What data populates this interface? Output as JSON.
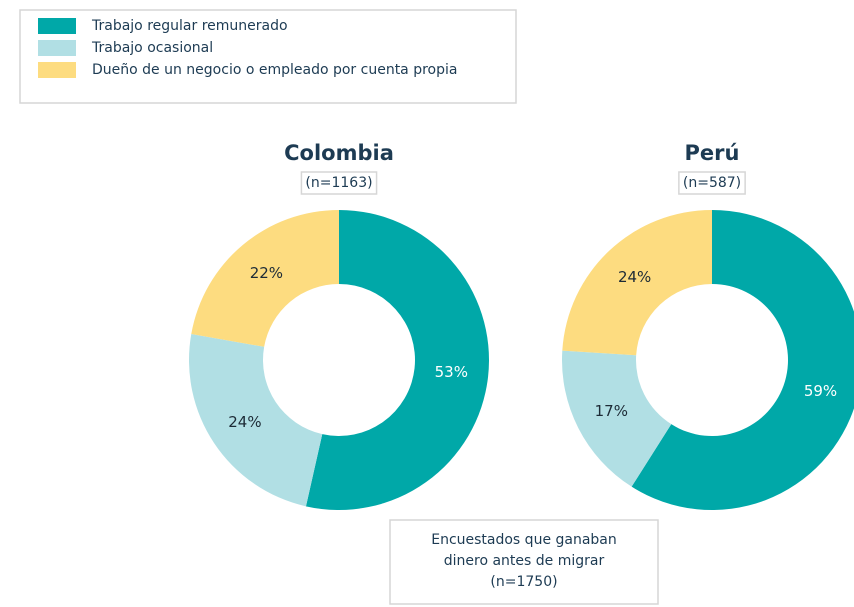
{
  "chart_data": [
    {
      "type": "pie",
      "title": "Colombia",
      "subtitle": "(n=1163)",
      "categories": [
        "Trabajo regular remunerado",
        "Trabajo ocasional",
        "Dueño de un negocio o empleado por cuenta propia"
      ],
      "values": [
        53,
        24,
        22
      ],
      "value_labels": [
        "53%",
        "24%",
        "22%"
      ],
      "colors": [
        "#00a8a8",
        "#b1dfe4",
        "#fddc80"
      ]
    },
    {
      "type": "pie",
      "title": "Perú",
      "subtitle": "(n=587)",
      "categories": [
        "Trabajo regular remunerado",
        "Trabajo ocasional",
        "Dueño de un negocio o empleado por cuenta propia"
      ],
      "values": [
        59,
        17,
        24
      ],
      "value_labels": [
        "59%",
        "17%",
        "24%"
      ],
      "colors": [
        "#00a8a8",
        "#b1dfe4",
        "#fddc80"
      ]
    }
  ],
  "note": [
    "Encuestados que ganaban",
    "dinero antes de migrar",
    "(n=1750)"
  ]
}
